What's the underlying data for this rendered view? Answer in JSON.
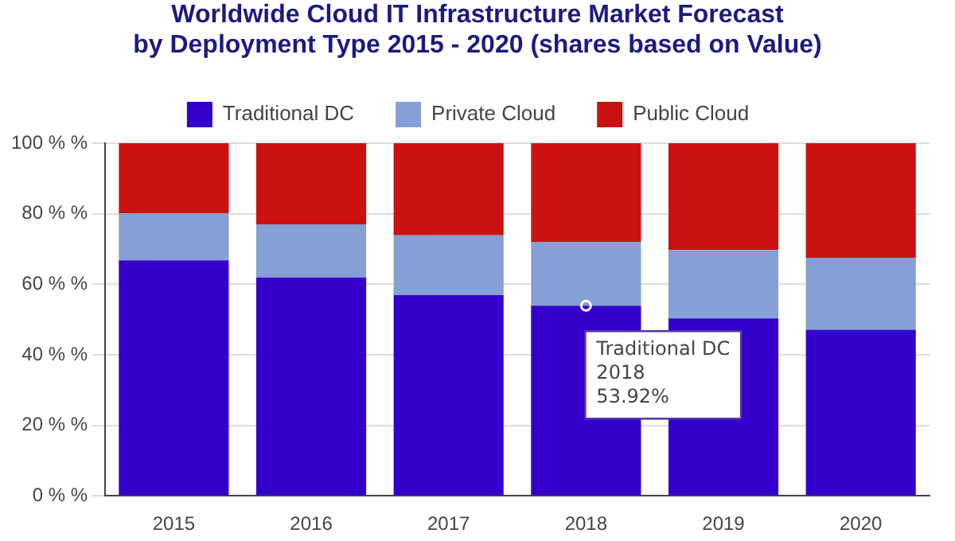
{
  "chart_data": {
    "type": "bar",
    "title": "Worldwide Cloud IT Infrastructure Market Forecast",
    "subtitle": "by Deployment Type  2015 - 2020 (shares based on Value)",
    "categories": [
      "2015",
      "2016",
      "2017",
      "2018",
      "2019",
      "2020"
    ],
    "stacked": true,
    "series": [
      {
        "name": "Traditional DC",
        "color": "#3300cc",
        "values": [
          66.8,
          61.9,
          56.9,
          53.92,
          50.3,
          47.1
        ]
      },
      {
        "name": "Private Cloud",
        "color": "#84a0d4",
        "values": [
          13.3,
          15.1,
          17.0,
          18.1,
          19.4,
          20.4
        ]
      },
      {
        "name": "Public Cloud",
        "color": "#cc1111",
        "values": [
          19.9,
          23.0,
          26.1,
          28.0,
          30.3,
          32.5
        ]
      }
    ],
    "ylim": [
      0,
      100
    ],
    "yticks": [
      {
        "value": 0,
        "label": "0 % %"
      },
      {
        "value": 20,
        "label": "20 % %"
      },
      {
        "value": 40,
        "label": "40 % %"
      },
      {
        "value": 60,
        "label": "60 % %"
      },
      {
        "value": 80,
        "label": "80 % %"
      },
      {
        "value": 100,
        "label": "100 % %"
      }
    ],
    "grid": "y",
    "legend": "top",
    "annotations": [
      {
        "text": "Traditional DC\n2018\n53.92%",
        "x": "2018",
        "y": 53.92
      }
    ]
  }
}
